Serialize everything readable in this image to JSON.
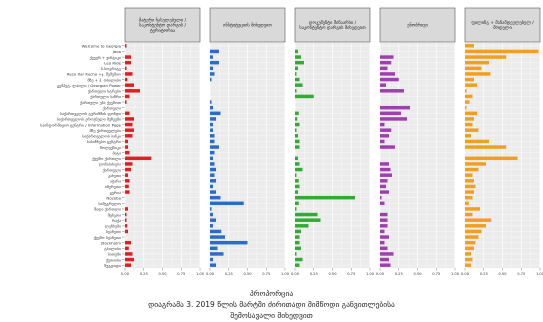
{
  "chart_data": {
    "type": "bar",
    "orientation": "horizontal",
    "xlabel": "პროპორცია",
    "xlim": [
      0,
      1
    ],
    "xticks": [
      "0.00",
      "0.25",
      "0.50",
      "0.75",
      "1.00"
    ],
    "grid": true,
    "caption": [
      "დიაგრამა 3. 2019 წლის მარტში ძირითადი მიმწოდი განვითლებისა",
      "შემოსავალი მიხედვით"
    ],
    "categories": [
      "Welcome to Georgia",
      "Jeoo",
      "ქვევრ + ვინტიკი",
      "Leo Ride",
      "ს.სოკრატე",
      "Rezo Xar Kucha +ჯ. შემუშაო",
      "მზე + ჰ. თბილისი",
      "გემპეტ. ლაილი / Georgian Power",
      "ქართული სტრესი",
      "ქართული ბაზრი",
      "ქართული ენა ქვემოთ",
      "ქართული",
      "საქართველოს ტურიზმის ფონდი",
      "საქართველოს ეროვნული მუზეუმი",
      "საინფორმაციო ცენტრი / Information Page",
      "მზე ქართველები",
      "საქართველოს ბანკი",
      "საბიზნესო ცენტრი",
      "მოლექსიკი",
      "მატა",
      "ქვემო ქართლი",
      "ღონისძიება",
      "ქართული",
      "კახეთი",
      "აჭარა",
      "იმერეთი",
      "გურია",
      "Nozoba",
      "სამეგრელო",
      "შიდა ქართლი",
      "მცხეთა",
      "რაჭა",
      "ლეჩხუმი",
      "სვანეთი",
      "ქვემო სვანეთი",
      "Stockholm",
      "ტბილისი",
      "ბათუმი",
      "ქუთაისი",
      "ზუგდიდი"
    ],
    "panels": [
      {
        "title": [
          "მატერი ჩასულებული /",
          "საკონტენტო დარგის /",
          "ტერიტორია"
        ],
        "color": "#e02020",
        "values": [
          0.02,
          0.0,
          0.08,
          0.08,
          0.02,
          0.1,
          0.03,
          0.12,
          0.2,
          0.06,
          0.02,
          0.0,
          0.06,
          0.12,
          0.1,
          0.12,
          0.1,
          0.04,
          0.04,
          0.06,
          0.35,
          0.1,
          0.08,
          0.04,
          0.06,
          0.05,
          0.06,
          0.0,
          0.0,
          0.04,
          0.02,
          0.02,
          0.03,
          0.04,
          0.0,
          0.08,
          0.05,
          0.1,
          0.12,
          0.08
        ]
      },
      {
        "title": [
          "ინსტიტუციის მიხედვით"
        ],
        "color": "#2b6cc4",
        "values": [
          0.0,
          0.12,
          0.04,
          0.12,
          0.04,
          0.06,
          0.02,
          0.0,
          0.0,
          0.0,
          0.02,
          0.04,
          0.14,
          0.08,
          0.04,
          0.04,
          0.06,
          0.06,
          0.12,
          0.06,
          0.04,
          0.06,
          0.08,
          0.06,
          0.08,
          0.04,
          0.08,
          0.14,
          0.45,
          0.02,
          0.04,
          0.08,
          0.04,
          0.15,
          0.2,
          0.5,
          0.1,
          0.18,
          0.04,
          0.08
        ]
      },
      {
        "title": [
          "დოკუმენტი შინაარსი /",
          "საკონტენტო დარგის მიხედვით"
        ],
        "color": "#33aa33",
        "values": [
          0.0,
          0.04,
          0.08,
          0.12,
          0.04,
          0.02,
          0.06,
          0.1,
          0.02,
          0.25,
          0.0,
          0.0,
          0.05,
          0.03,
          0.06,
          0.02,
          0.04,
          0.06,
          0.06,
          0.0,
          0.04,
          0.06,
          0.1,
          0.02,
          0.05,
          0.06,
          0.04,
          0.8,
          0.05,
          0.02,
          0.3,
          0.34,
          0.18,
          0.08,
          0.06,
          0.06,
          0.08,
          0.02,
          0.1,
          0.06
        ]
      },
      {
        "title": [
          "ენობრივი"
        ],
        "color": "#a040b0",
        "values": [
          0.0,
          0.0,
          0.18,
          0.15,
          0.1,
          0.2,
          0.25,
          0.08,
          0.32,
          0.0,
          0.0,
          0.4,
          0.28,
          0.36,
          0.06,
          0.15,
          0.12,
          0.06,
          0.2,
          0.0,
          0.0,
          0.12,
          0.14,
          0.16,
          0.1,
          0.08,
          0.12,
          0.02,
          0.06,
          0.0,
          0.1,
          0.1,
          0.1,
          0.06,
          0.12,
          0.06,
          0.1,
          0.18,
          0.12,
          0.14
        ]
      },
      {
        "title": [
          "ფილინგ + მანამდეულებელ /",
          "მოდელი"
        ],
        "color": "#f0a020",
        "values": [
          0.12,
          0.98,
          0.55,
          0.32,
          0.22,
          0.34,
          0.12,
          0.16,
          0.02,
          0.1,
          0.06,
          0.02,
          0.16,
          0.12,
          0.1,
          0.18,
          0.08,
          0.32,
          0.55,
          0.0,
          0.7,
          0.28,
          0.18,
          0.1,
          0.12,
          0.14,
          0.12,
          0.1,
          0.05,
          0.2,
          0.1,
          0.35,
          0.28,
          0.22,
          0.18,
          0.14,
          0.12,
          0.08,
          0.1,
          0.08
        ]
      }
    ]
  },
  "colors": {
    "panel_background": "#ebebeb",
    "strip_background": "#d9d9d9",
    "grid": "#ffffff"
  }
}
